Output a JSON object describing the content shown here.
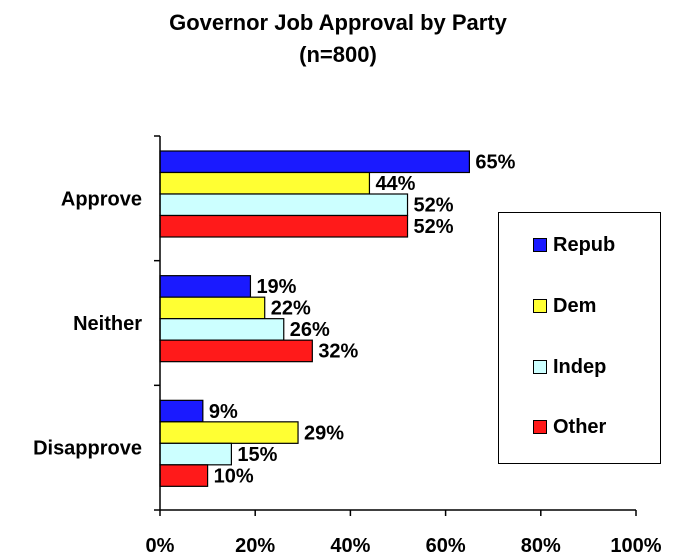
{
  "chart_data": {
    "type": "bar",
    "orientation": "horizontal",
    "title": "Governor Job Approval by Party",
    "subtitle": "(n=800)",
    "categories": [
      "Approve",
      "Neither",
      "Disapprove"
    ],
    "series": [
      {
        "name": "Repub",
        "color": "#1a1aff",
        "values": [
          65,
          19,
          9
        ]
      },
      {
        "name": "Dem",
        "color": "#ffff33",
        "values": [
          44,
          22,
          29
        ]
      },
      {
        "name": "Indep",
        "color": "#ccffff",
        "values": [
          52,
          26,
          15
        ]
      },
      {
        "name": "Other",
        "color": "#ff1a1a",
        "values": [
          52,
          32,
          10
        ]
      }
    ],
    "value_labels": [
      [
        "65%",
        "19%",
        "9%"
      ],
      [
        "44%",
        "22%",
        "29%"
      ],
      [
        "52%",
        "26%",
        "15%"
      ],
      [
        "52%",
        "32%",
        "10%"
      ]
    ],
    "x_ticks": [
      "0%",
      "20%",
      "40%",
      "60%",
      "80%",
      "100%"
    ],
    "xlim": [
      0,
      100
    ],
    "grid": false,
    "legend_position": "right"
  }
}
